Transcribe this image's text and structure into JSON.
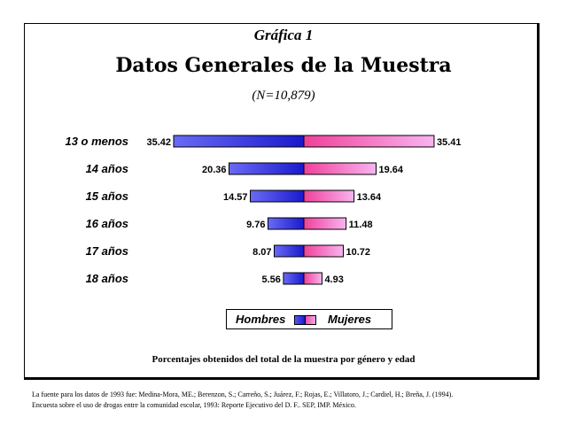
{
  "figure_label": "Gráfica 1",
  "title": "Datos Generales de la Muestra",
  "subtitle": "(N=10,879)",
  "chart_note": "Porcentajes obtenidos del total de la muestra por género y edad",
  "source_lines": [
    "La fuente para los datos de 1993 fue: Medina-Mora, ME.; Berenzon, S.; Carreño, S.; Juárez, F.; Rojas, E.; Villatoro, J.; Cardiel, H.; Breña, J. (1994).",
    "Encuesta sobre el uso de drogas entre la comunidad escolar, 1993: Reporte Ejecutivo del D. F.. SEP, IMP. México."
  ],
  "legend": {
    "left_label": "Hombres",
    "right_label": "Mujeres",
    "placement": "bottom-center"
  },
  "colors": {
    "hombres_dark": "#1a1acc",
    "hombres_light": "#6464f4",
    "mujeres_dark": "#f0409a",
    "mujeres_light": "#f8b0ec"
  },
  "chart_data": {
    "type": "bar",
    "orientation": "horizontal-diverging",
    "categories": [
      "13 o menos",
      "14 años",
      "15 años",
      "16 años",
      "17 años",
      "18 años"
    ],
    "series": [
      {
        "name": "Hombres",
        "values": [
          35.42,
          20.36,
          14.57,
          9.76,
          8.07,
          5.56
        ]
      },
      {
        "name": "Mujeres",
        "values": [
          35.41,
          19.64,
          13.64,
          11.48,
          10.72,
          4.93
        ]
      }
    ],
    "data_labels": {
      "Hombres": [
        "35.42",
        "20.36",
        "14.57",
        "9.76",
        "8.07",
        "5.56"
      ],
      "Mujeres": [
        "35.41",
        "19.64",
        "13.64",
        "11.48",
        "10.72",
        "4.93"
      ]
    },
    "xlim": [
      0,
      35.42
    ],
    "grid": false
  }
}
